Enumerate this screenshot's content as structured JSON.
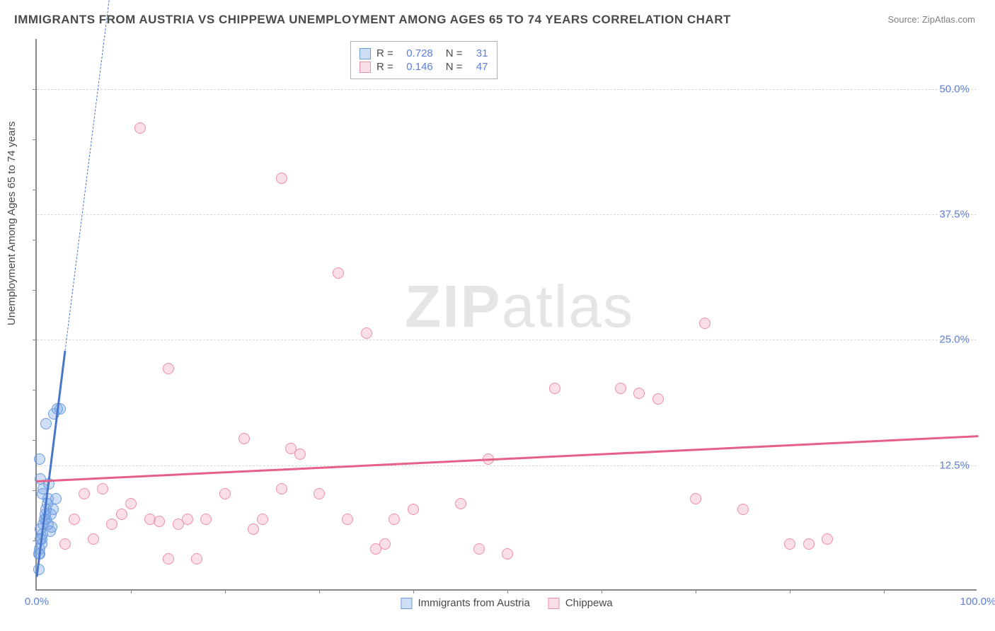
{
  "title": "IMMIGRANTS FROM AUSTRIA VS CHIPPEWA UNEMPLOYMENT AMONG AGES 65 TO 74 YEARS CORRELATION CHART",
  "source": "Source: ZipAtlas.com",
  "ylabel": "Unemployment Among Ages 65 to 74 years",
  "watermark": {
    "bold": "ZIP",
    "rest": "atlas"
  },
  "colors": {
    "series1_fill": "rgba(118,163,230,0.35)",
    "series1_stroke": "#6a9be0",
    "series2_fill": "rgba(240,150,175,0.30)",
    "series2_stroke": "#ec8fab",
    "trendline1": "#4a76c9",
    "trendline2": "#e65f86",
    "tick_text": "#5b7fd6",
    "title_text": "#4a4a4a",
    "grid": "#d8d8d8"
  },
  "chart": {
    "type": "scatter",
    "xlim": [
      0,
      100
    ],
    "ylim": [
      0,
      55
    ],
    "y_gridlines": [
      12.5,
      25.0,
      37.5,
      50.0
    ],
    "y_grid_labels": [
      "12.5%",
      "25.0%",
      "37.5%",
      "50.0%"
    ],
    "x_start_label": "0.0%",
    "x_end_label": "100.0%",
    "x_minor_ticks": [
      10,
      20,
      30,
      40,
      50,
      60,
      70,
      80,
      90
    ],
    "y_minor_ticks": [
      5,
      10,
      15,
      20,
      25,
      30,
      35,
      40,
      45,
      50
    ],
    "marker_radius": 8,
    "title_fontsize": 17,
    "label_fontsize": 15
  },
  "legend_top": {
    "rows": [
      {
        "swatch": 0,
        "r_label": "R =",
        "r_val": "0.728",
        "n_label": "N =",
        "n_val": "31"
      },
      {
        "swatch": 1,
        "r_label": "R =",
        "r_val": "0.146",
        "n_label": "N =",
        "n_val": "47"
      }
    ]
  },
  "legend_bottom": {
    "items": [
      {
        "swatch": 0,
        "label": "Immigrants from Austria"
      },
      {
        "swatch": 1,
        "label": "Chippewa"
      }
    ]
  },
  "series": [
    {
      "name": "Immigrants from Austria",
      "color_key": "series1",
      "trendline": {
        "x1": 0,
        "y1": 1.5,
        "x2": 3.0,
        "y2": 24,
        "dashed_to_x": 12.5,
        "dashed_to_y": 95
      },
      "points": [
        [
          0.2,
          3.5
        ],
        [
          0.3,
          4.0
        ],
        [
          0.5,
          5.0
        ],
        [
          0.6,
          5.5
        ],
        [
          0.4,
          6.0
        ],
        [
          0.7,
          6.5
        ],
        [
          0.8,
          7.0
        ],
        [
          0.9,
          7.5
        ],
        [
          1.0,
          8.0
        ],
        [
          1.1,
          8.5
        ],
        [
          1.2,
          9.0
        ],
        [
          0.6,
          9.5
        ],
        [
          0.7,
          10.0
        ],
        [
          1.3,
          10.5
        ],
        [
          0.4,
          11.0
        ],
        [
          0.3,
          13.0
        ],
        [
          1.0,
          7.0
        ],
        [
          1.2,
          6.5
        ],
        [
          1.5,
          7.5
        ],
        [
          1.7,
          8.0
        ],
        [
          2.0,
          9.0
        ],
        [
          0.5,
          4.5
        ],
        [
          0.4,
          5.0
        ],
        [
          0.2,
          2.0
        ],
        [
          1.8,
          17.5
        ],
        [
          2.2,
          18.0
        ],
        [
          2.5,
          18.0
        ],
        [
          1.0,
          16.5
        ],
        [
          0.3,
          3.5
        ],
        [
          1.4,
          5.8
        ],
        [
          1.6,
          6.2
        ]
      ]
    },
    {
      "name": "Chippewa",
      "color_key": "series2",
      "trendline": {
        "x1": 0,
        "y1": 11.0,
        "x2": 100,
        "y2": 15.5
      },
      "points": [
        [
          3,
          4.5
        ],
        [
          4,
          7.0
        ],
        [
          5,
          9.5
        ],
        [
          6,
          5.0
        ],
        [
          7,
          10.0
        ],
        [
          8,
          6.5
        ],
        [
          9,
          7.5
        ],
        [
          10,
          8.5
        ],
        [
          11,
          46.0
        ],
        [
          12,
          7.0
        ],
        [
          13,
          6.8
        ],
        [
          14,
          3.0
        ],
        [
          14,
          22.0
        ],
        [
          15,
          6.5
        ],
        [
          16,
          7.0
        ],
        [
          17,
          3.0
        ],
        [
          18,
          7.0
        ],
        [
          20,
          9.5
        ],
        [
          22,
          15.0
        ],
        [
          24,
          7.0
        ],
        [
          26,
          10.0
        ],
        [
          26,
          41.0
        ],
        [
          27,
          14.0
        ],
        [
          28,
          13.5
        ],
        [
          30,
          9.5
        ],
        [
          32,
          31.5
        ],
        [
          33,
          7.0
        ],
        [
          35,
          25.5
        ],
        [
          36,
          4.0
        ],
        [
          37,
          4.5
        ],
        [
          38,
          7.0
        ],
        [
          45,
          8.5
        ],
        [
          47,
          4.0
        ],
        [
          48,
          13.0
        ],
        [
          50,
          3.5
        ],
        [
          55,
          20.0
        ],
        [
          62,
          20.0
        ],
        [
          64,
          19.5
        ],
        [
          66,
          19.0
        ],
        [
          70,
          9.0
        ],
        [
          71,
          26.5
        ],
        [
          80,
          4.5
        ],
        [
          82,
          4.5
        ],
        [
          84,
          5.0
        ],
        [
          75,
          8.0
        ],
        [
          40,
          8.0
        ],
        [
          23,
          6.0
        ]
      ]
    }
  ]
}
